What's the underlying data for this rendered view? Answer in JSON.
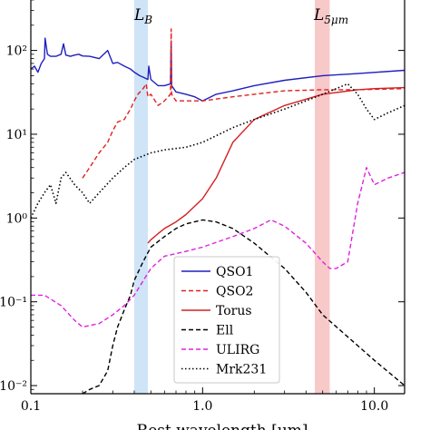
{
  "chart_data": {
    "type": "line",
    "title": "",
    "xlabel": "Rest wavelength [μm]",
    "ylabel": "",
    "x_scale": "log",
    "y_scale": "log",
    "xlim": [
      0.1,
      15
    ],
    "ylim": [
      0.008,
      400
    ],
    "x_ticks": [
      {
        "value": 0.1,
        "label": "0.1"
      },
      {
        "value": 1.0,
        "label": "1.0"
      },
      {
        "value": 10.0,
        "label": "10.0"
      }
    ],
    "y_ticks": [
      {
        "value": 0.01,
        "label": "10⁻²"
      },
      {
        "value": 0.1,
        "label": "10⁻¹"
      },
      {
        "value": 1,
        "label": "10⁰"
      },
      {
        "value": 10,
        "label": "10¹"
      },
      {
        "value": 100,
        "label": "10²"
      }
    ],
    "bands": [
      {
        "label": "L_B",
        "x0": 0.4,
        "x1": 0.48,
        "color": "#cfe4f7"
      },
      {
        "label": "L_5μm",
        "x0": 4.5,
        "x1": 5.5,
        "color": "#f8c9c9"
      }
    ],
    "band_labels": [
      "L",
      "B",
      "L",
      "5μm"
    ],
    "legend_position": "bottom-center",
    "series": [
      {
        "name": "QSO1",
        "color": "#1f1fbf",
        "dash": "solid",
        "x": [
          0.1,
          0.105,
          0.11,
          0.115,
          0.12,
          0.121,
          0.125,
          0.13,
          0.14,
          0.15,
          0.155,
          0.16,
          0.17,
          0.18,
          0.19,
          0.2,
          0.22,
          0.25,
          0.28,
          0.3,
          0.32,
          0.35,
          0.38,
          0.4,
          0.43,
          0.45,
          0.48,
          0.486,
          0.5,
          0.55,
          0.6,
          0.65,
          0.656,
          0.66,
          0.7,
          0.8,
          0.9,
          1.0,
          1.2,
          1.5,
          2.0,
          3.0,
          5.0,
          8.0,
          15.0
        ],
        "y": [
          60,
          65,
          55,
          70,
          80,
          140,
          90,
          85,
          85,
          90,
          120,
          88,
          85,
          88,
          90,
          86,
          85,
          80,
          100,
          70,
          72,
          65,
          60,
          55,
          50,
          48,
          45,
          65,
          45,
          38,
          38,
          40,
          130,
          38,
          32,
          30,
          28,
          25,
          30,
          33,
          38,
          44,
          50,
          53,
          58
        ]
      },
      {
        "name": "QSO2",
        "color": "#e02020",
        "dash": "dashed",
        "x": [
          0.2,
          0.22,
          0.25,
          0.28,
          0.3,
          0.32,
          0.35,
          0.38,
          0.4,
          0.42,
          0.45,
          0.47,
          0.48,
          0.5,
          0.55,
          0.6,
          0.65,
          0.656,
          0.66,
          0.7,
          0.8,
          0.9,
          1.0,
          1.5,
          2.0,
          3.0,
          5.0,
          8.0,
          15.0
        ],
        "y": [
          3,
          4,
          6,
          8,
          11,
          14,
          15,
          20,
          25,
          30,
          35,
          40,
          28,
          30,
          22,
          25,
          30,
          180,
          30,
          25,
          25,
          25,
          25,
          28,
          30,
          33,
          34,
          34,
          35
        ]
      },
      {
        "name": "Torus",
        "color": "#d42020",
        "dash": "solid",
        "x": [
          0.48,
          0.5,
          0.55,
          0.6,
          0.7,
          0.8,
          1.0,
          1.2,
          1.5,
          2.0,
          3.0,
          5.0,
          8.0,
          10.0,
          15.0
        ],
        "y": [
          0.5,
          0.55,
          0.65,
          0.75,
          0.9,
          1.1,
          1.7,
          3,
          8,
          15,
          22,
          30,
          34,
          35,
          36
        ]
      },
      {
        "name": "Ell",
        "color": "#000000",
        "dash": "dashed",
        "x": [
          0.2,
          0.22,
          0.25,
          0.28,
          0.3,
          0.32,
          0.35,
          0.38,
          0.4,
          0.45,
          0.5,
          0.6,
          0.7,
          0.8,
          1.0,
          1.2,
          1.5,
          2.0,
          3.0,
          4.0,
          5.0,
          8.0,
          10.0,
          15.0
        ],
        "y": [
          0.008,
          0.009,
          0.01,
          0.015,
          0.03,
          0.05,
          0.08,
          0.12,
          0.18,
          0.3,
          0.45,
          0.6,
          0.75,
          0.85,
          0.95,
          0.9,
          0.75,
          0.5,
          0.25,
          0.13,
          0.07,
          0.03,
          0.02,
          0.01
        ]
      },
      {
        "name": "ULIRG",
        "color": "#e020e0",
        "dash": "dashed",
        "x": [
          0.1,
          0.12,
          0.15,
          0.18,
          0.2,
          0.25,
          0.3,
          0.35,
          0.4,
          0.5,
          0.6,
          0.8,
          1.0,
          1.5,
          2.0,
          2.5,
          3.0,
          4.0,
          5.0,
          5.5,
          6.0,
          7.0,
          8.0,
          9.0,
          10.0,
          12.0,
          15.0
        ],
        "y": [
          0.12,
          0.12,
          0.09,
          0.06,
          0.05,
          0.055,
          0.07,
          0.09,
          0.12,
          0.25,
          0.35,
          0.4,
          0.45,
          0.6,
          0.75,
          0.95,
          0.8,
          0.5,
          0.3,
          0.25,
          0.25,
          0.3,
          1.5,
          4,
          2.5,
          3,
          3.5
        ]
      },
      {
        "name": "Mrk231",
        "color": "#000000",
        "dash": "dotted",
        "x": [
          0.1,
          0.11,
          0.12,
          0.13,
          0.14,
          0.15,
          0.16,
          0.18,
          0.2,
          0.22,
          0.25,
          0.3,
          0.35,
          0.4,
          0.5,
          0.6,
          0.8,
          1.0,
          1.5,
          2.0,
          3.0,
          4.0,
          5.0,
          6.0,
          7.0,
          8.0,
          9.0,
          10.0,
          12.0,
          15.0
        ],
        "y": [
          1,
          1.5,
          2,
          2.5,
          1.5,
          3,
          3.5,
          2.5,
          2,
          1.5,
          2,
          3,
          4,
          5,
          6,
          6.5,
          7,
          8,
          12,
          15,
          20,
          25,
          30,
          35,
          40,
          30,
          20,
          15,
          18,
          22
        ]
      }
    ]
  }
}
